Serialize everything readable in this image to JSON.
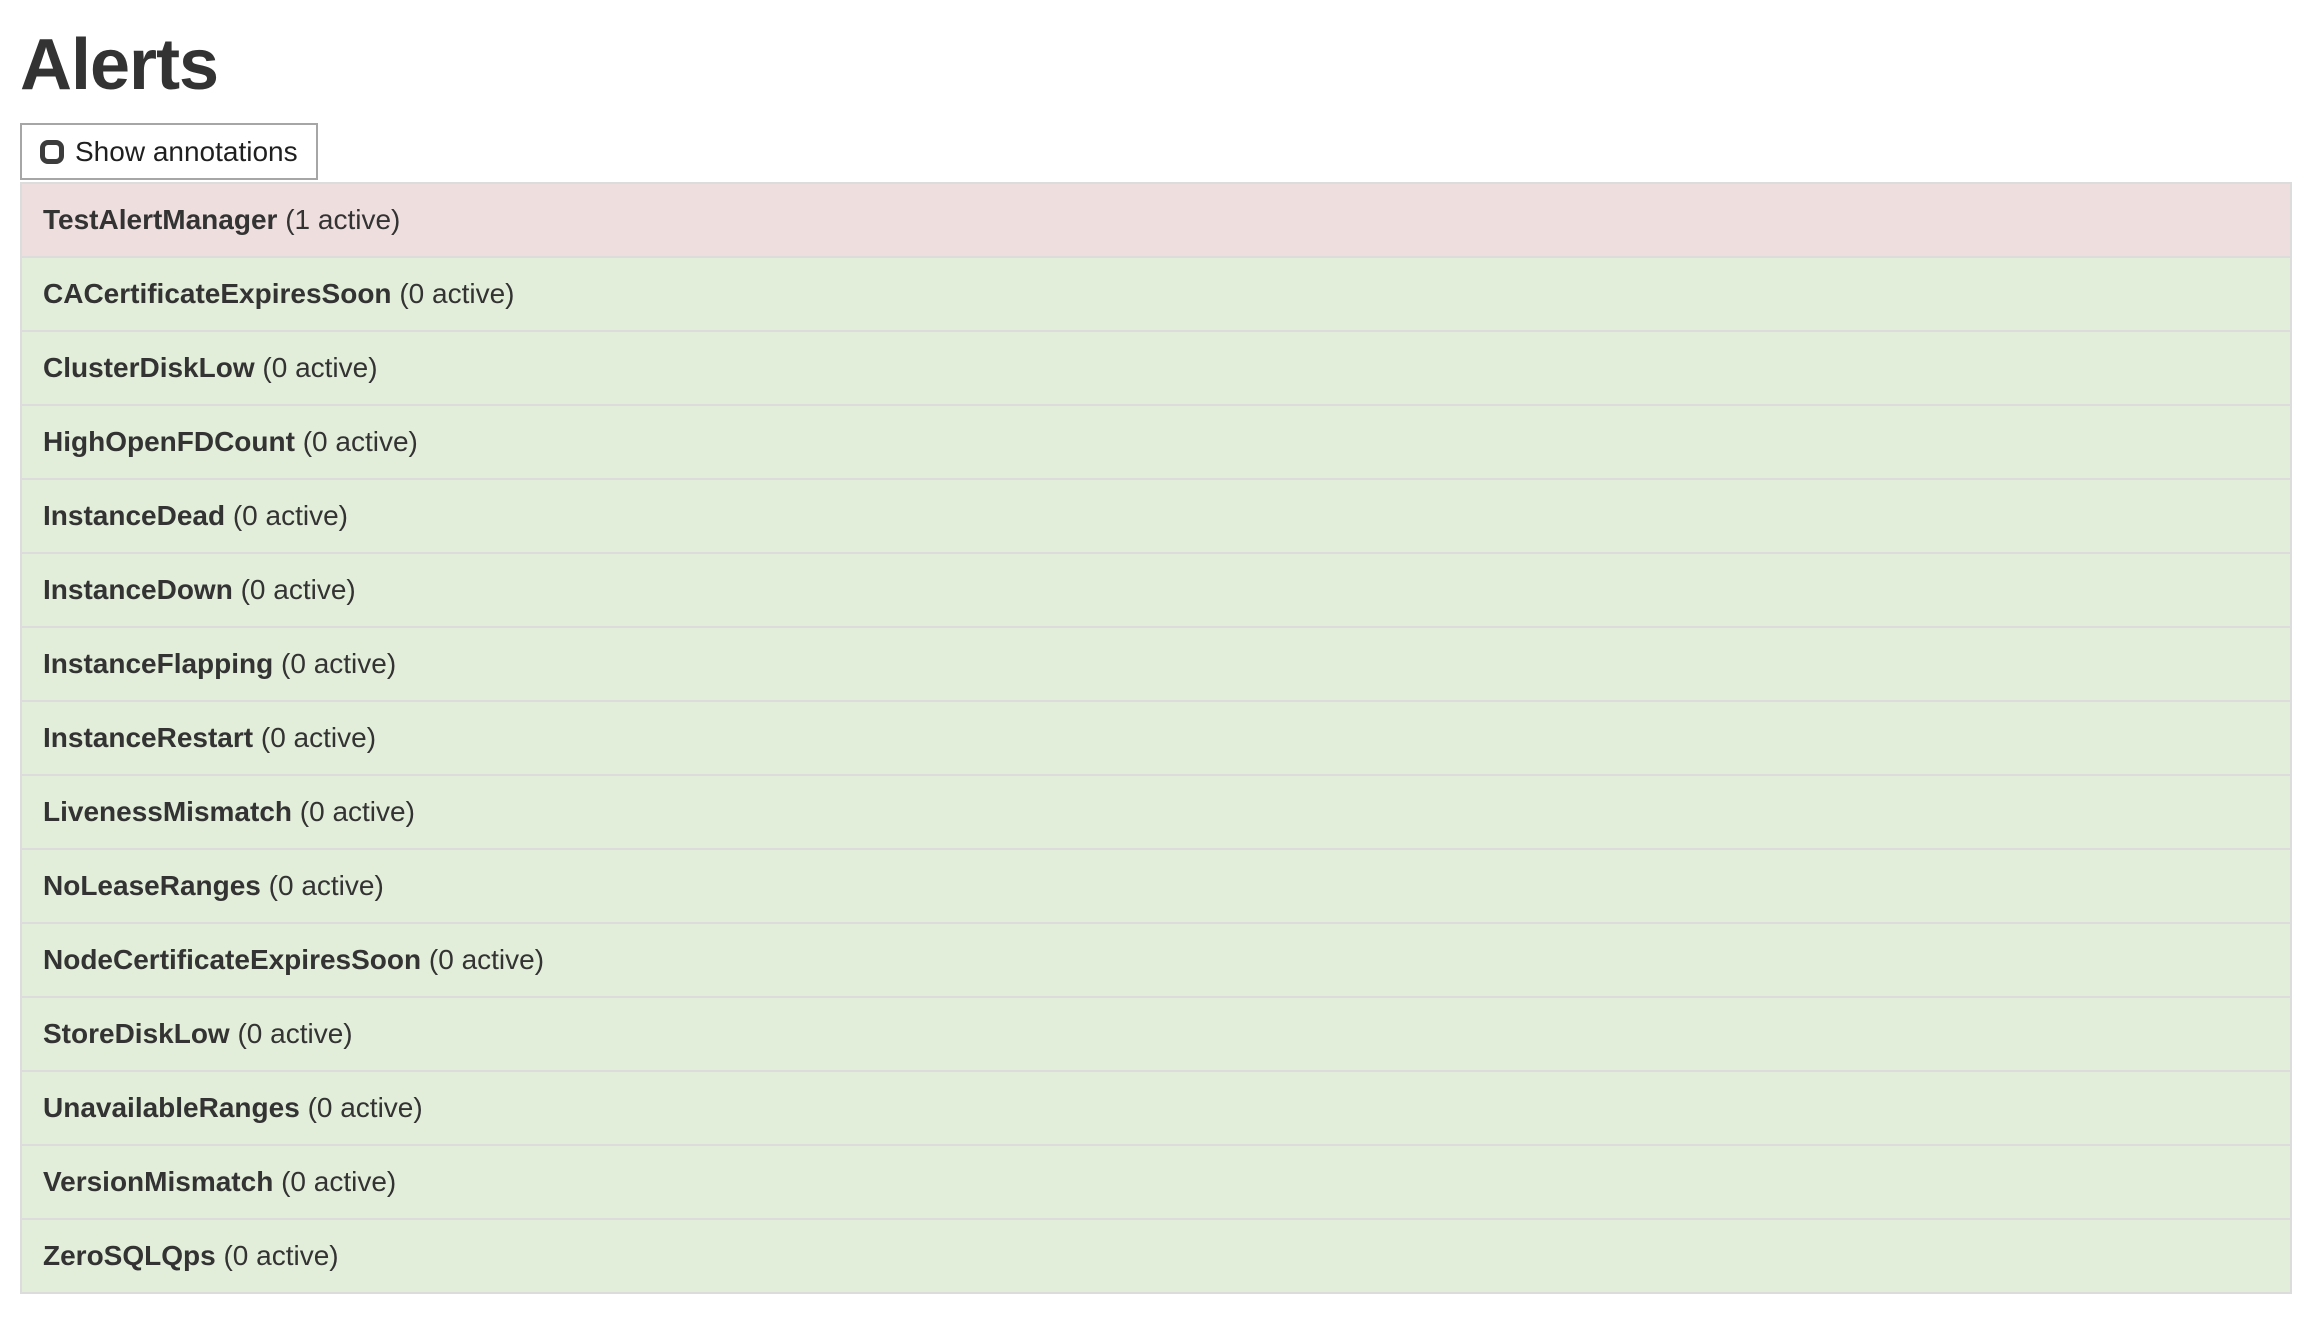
{
  "page": {
    "title": "Alerts"
  },
  "toolbar": {
    "show_annotations_label": "Show annotations",
    "checkbox_checked": false
  },
  "colors": {
    "danger_row_bg": "#efdede",
    "success_row_bg": "#e2eeda",
    "table_border": "#dcdcdc",
    "text": "#333333",
    "button_border": "#a6a6a6"
  },
  "alerts": [
    {
      "name": "TestAlertManager",
      "count_label": "(1 active)",
      "status": "danger"
    },
    {
      "name": "CACertificateExpiresSoon",
      "count_label": "(0 active)",
      "status": "success"
    },
    {
      "name": "ClusterDiskLow",
      "count_label": "(0 active)",
      "status": "success"
    },
    {
      "name": "HighOpenFDCount",
      "count_label": "(0 active)",
      "status": "success"
    },
    {
      "name": "InstanceDead",
      "count_label": "(0 active)",
      "status": "success"
    },
    {
      "name": "InstanceDown",
      "count_label": "(0 active)",
      "status": "success"
    },
    {
      "name": "InstanceFlapping",
      "count_label": "(0 active)",
      "status": "success"
    },
    {
      "name": "InstanceRestart",
      "count_label": "(0 active)",
      "status": "success"
    },
    {
      "name": "LivenessMismatch",
      "count_label": "(0 active)",
      "status": "success"
    },
    {
      "name": "NoLeaseRanges",
      "count_label": "(0 active)",
      "status": "success"
    },
    {
      "name": "NodeCertificateExpiresSoon",
      "count_label": "(0 active)",
      "status": "success"
    },
    {
      "name": "StoreDiskLow",
      "count_label": "(0 active)",
      "status": "success"
    },
    {
      "name": "UnavailableRanges",
      "count_label": "(0 active)",
      "status": "success"
    },
    {
      "name": "VersionMismatch",
      "count_label": "(0 active)",
      "status": "success"
    },
    {
      "name": "ZeroSQLQps",
      "count_label": "(0 active)",
      "status": "success"
    }
  ]
}
